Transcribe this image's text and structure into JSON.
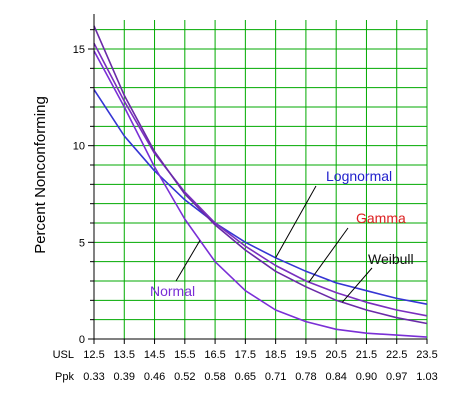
{
  "chart_data": {
    "type": "line",
    "title": "",
    "ylabel": "Percent Nonconforming",
    "ylim": [
      0,
      16.5
    ],
    "yticks": [
      0,
      5,
      10,
      15
    ],
    "xlim": [
      12.5,
      23.5
    ],
    "row_labels": {
      "usl": "USL",
      "ppk": "Ppk"
    },
    "x": [
      12.5,
      13.5,
      14.5,
      15.5,
      16.5,
      17.5,
      18.5,
      19.5,
      20.5,
      21.5,
      22.5,
      23.5
    ],
    "x_tick_labels": [
      "12.5",
      "13.5",
      "14.5",
      "15.5",
      "16.5",
      "17.5",
      "18.5",
      "19.5",
      "20.5",
      "21.5",
      "22.5",
      "23.5"
    ],
    "ppk_labels": [
      "0.33",
      "0.39",
      "0.46",
      "0.52",
      "0.58",
      "0.65",
      "0.71",
      "0.78",
      "0.84",
      "0.90",
      "0.97",
      "1.03"
    ],
    "grid": true,
    "grid_color": "#00aa00",
    "series": [
      {
        "name": "Lognormal",
        "color": "#3535d4",
        "values": [
          12.9,
          10.5,
          8.7,
          7.2,
          6.0,
          5.0,
          4.2,
          3.5,
          2.9,
          2.5,
          2.1,
          1.8
        ]
      },
      {
        "name": "Gamma",
        "color": "#7a2fbf",
        "values": [
          15.3,
          12.3,
          9.6,
          7.6,
          6.0,
          4.8,
          3.8,
          3.0,
          2.4,
          1.9,
          1.5,
          1.2
        ]
      },
      {
        "name": "Weibull",
        "color": "#6a2aa8",
        "values": [
          16.2,
          12.6,
          9.7,
          7.5,
          5.9,
          4.6,
          3.5,
          2.7,
          2.0,
          1.5,
          1.1,
          0.8
        ]
      },
      {
        "name": "Normal",
        "color": "#7a2fd6",
        "values": [
          14.9,
          12.0,
          8.9,
          6.2,
          4.0,
          2.5,
          1.5,
          0.9,
          0.5,
          0.3,
          0.2,
          0.1
        ]
      }
    ],
    "annotations": [
      {
        "label": "Lognormal",
        "color": "#2222cc",
        "series": "Lognormal",
        "at_x": 18.5
      },
      {
        "label": "Gamma",
        "color": "#dd2222",
        "series": "Gamma",
        "at_x": 19.6
      },
      {
        "label": "Weibull",
        "color": "#111111",
        "series": "Weibull",
        "at_x": 20.7
      },
      {
        "label": "Normal",
        "color": "#7a2fd6",
        "series": "Normal",
        "at_x": 16.0
      }
    ]
  }
}
